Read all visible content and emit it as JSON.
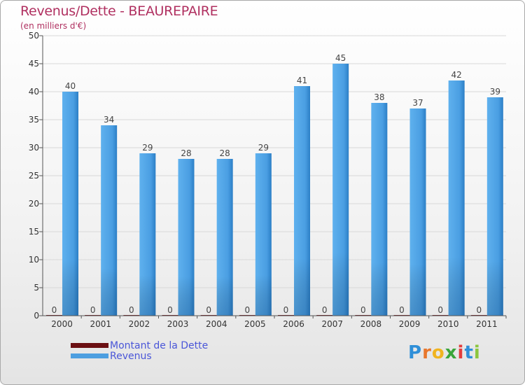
{
  "header": {
    "title": "Revenus/Dette - BEAUREPAIRE",
    "subtitle": "(en milliers d'€)"
  },
  "chart_data": {
    "type": "bar",
    "categories": [
      "2000",
      "2001",
      "2002",
      "2003",
      "2004",
      "2005",
      "2006",
      "2007",
      "2008",
      "2009",
      "2010",
      "2011"
    ],
    "series": [
      {
        "name": "Montant de la Dette",
        "color": "#6b0f12",
        "values": [
          0,
          0,
          0,
          0,
          0,
          0,
          0,
          0,
          0,
          0,
          0,
          0
        ]
      },
      {
        "name": "Revenus",
        "color": "#4d9fe0",
        "values": [
          40,
          34,
          29,
          28,
          28,
          29,
          41,
          45,
          38,
          37,
          42,
          39
        ]
      }
    ],
    "ylim": [
      0,
      50
    ],
    "yticks": [
      0,
      5,
      10,
      15,
      20,
      25,
      30,
      35,
      40,
      45,
      50
    ],
    "grid": true,
    "legend": "bottom-left"
  },
  "legend": {
    "items": [
      {
        "label": "Montant de la Dette",
        "color": "#6b0f12"
      },
      {
        "label": "Revenus",
        "color": "#4d9fe0"
      }
    ]
  },
  "logo": {
    "letters": [
      "P",
      "r",
      "o",
      "x",
      "i",
      "t",
      "i"
    ],
    "colors": [
      "#2f8fd8",
      "#e8772c",
      "#f0b420",
      "#3aa53a",
      "#e23d3d",
      "#2f8fd8",
      "#8cc63e"
    ]
  }
}
